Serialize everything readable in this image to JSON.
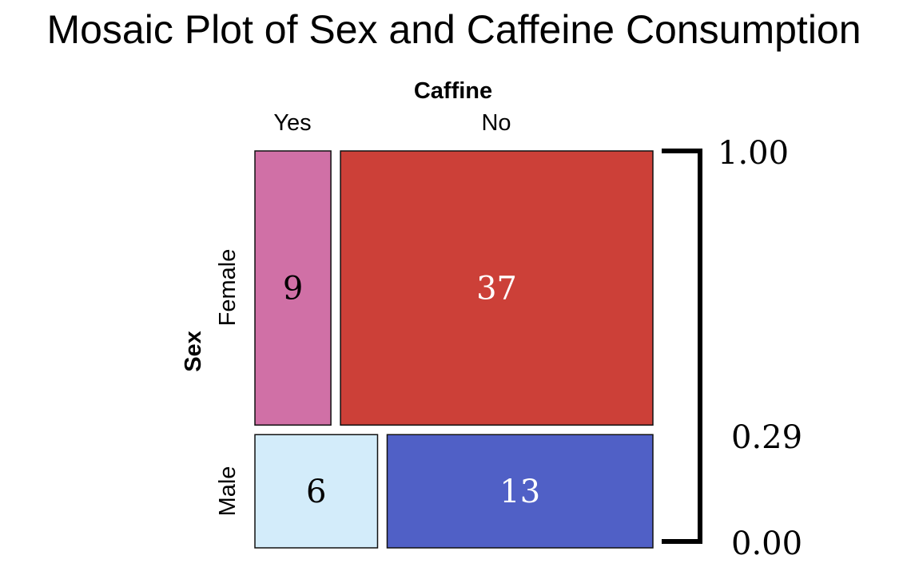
{
  "chart_data": {
    "type": "mosaic",
    "title": "Mosaic Plot of Sex and Caffeine Consumption",
    "column_variable": "Caffine",
    "row_variable": "Sex",
    "columns": [
      "Yes",
      "No"
    ],
    "rows": [
      "Female",
      "Male"
    ],
    "counts": [
      [
        9,
        37
      ],
      [
        6,
        13
      ]
    ],
    "colors": [
      [
        "#d070a6",
        "#cc4038"
      ],
      [
        "#d3ecfa",
        "#5060c6"
      ]
    ],
    "count_text_colors": [
      [
        "#000000",
        "#ffffff"
      ],
      [
        "#000000",
        "#ffffff"
      ]
    ],
    "scale_ticks": [
      "1.00",
      "0.29",
      "0.00"
    ]
  }
}
